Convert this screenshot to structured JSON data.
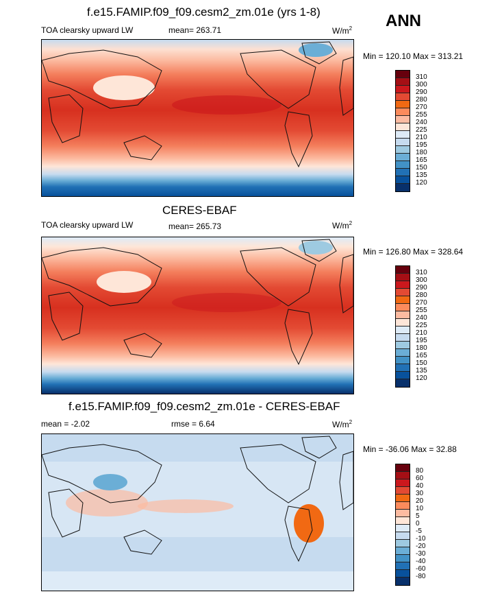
{
  "season": "ANN",
  "panels": [
    {
      "title": "f.e15.FAMIP.f09_f09.cesm2_zm.01e (yrs 1-8)",
      "left": "TOA clearsky upward LW",
      "center": "mean= 263.71",
      "units": "W/m",
      "units_sup": "2",
      "minmax": "Min = 120.10 Max = 313.21",
      "levels": [
        "310",
        "300",
        "290",
        "280",
        "270",
        "255",
        "240",
        "225",
        "210",
        "195",
        "180",
        "165",
        "150",
        "135",
        "120"
      ],
      "colors": [
        "#67000d",
        "#a50f15",
        "#cb181d",
        "#e34a33",
        "#f16913",
        "#fb8b5c",
        "#fcbba1",
        "#fee6d8",
        "#deebf7",
        "#c6dbef",
        "#9ecae1",
        "#6baed6",
        "#4292c6",
        "#2171b5",
        "#08519c",
        "#08306b"
      ]
    },
    {
      "title": "CERES-EBAF",
      "left": "TOA clearsky upward LW",
      "center": "mean= 265.73",
      "units": "W/m",
      "units_sup": "2",
      "minmax": "Min = 126.80 Max = 328.64",
      "levels": [
        "310",
        "300",
        "290",
        "280",
        "270",
        "255",
        "240",
        "225",
        "210",
        "195",
        "180",
        "165",
        "150",
        "135",
        "120"
      ],
      "colors": [
        "#67000d",
        "#a50f15",
        "#cb181d",
        "#e34a33",
        "#f16913",
        "#fb8b5c",
        "#fcbba1",
        "#fee6d8",
        "#deebf7",
        "#c6dbef",
        "#9ecae1",
        "#6baed6",
        "#4292c6",
        "#2171b5",
        "#08519c",
        "#08306b"
      ]
    },
    {
      "title": "f.e15.FAMIP.f09_f09.cesm2_zm.01e - CERES-EBAF",
      "left": "mean =  -2.02",
      "center": "rmse =    6.64",
      "units": "W/m",
      "units_sup": "2",
      "minmax": "Min = -36.06 Max =  32.88",
      "levels": [
        "80",
        "60",
        "40",
        "30",
        "20",
        "10",
        "5",
        "0",
        "-5",
        "-10",
        "-20",
        "-30",
        "-40",
        "-60",
        "-80"
      ],
      "colors": [
        "#67000d",
        "#a50f15",
        "#cb181d",
        "#e34a33",
        "#f16913",
        "#fb8b5c",
        "#fcbba1",
        "#fee6d8",
        "#deebf7",
        "#c6dbef",
        "#9ecae1",
        "#6baed6",
        "#4292c6",
        "#2171b5",
        "#08519c",
        "#08306b"
      ]
    }
  ]
}
